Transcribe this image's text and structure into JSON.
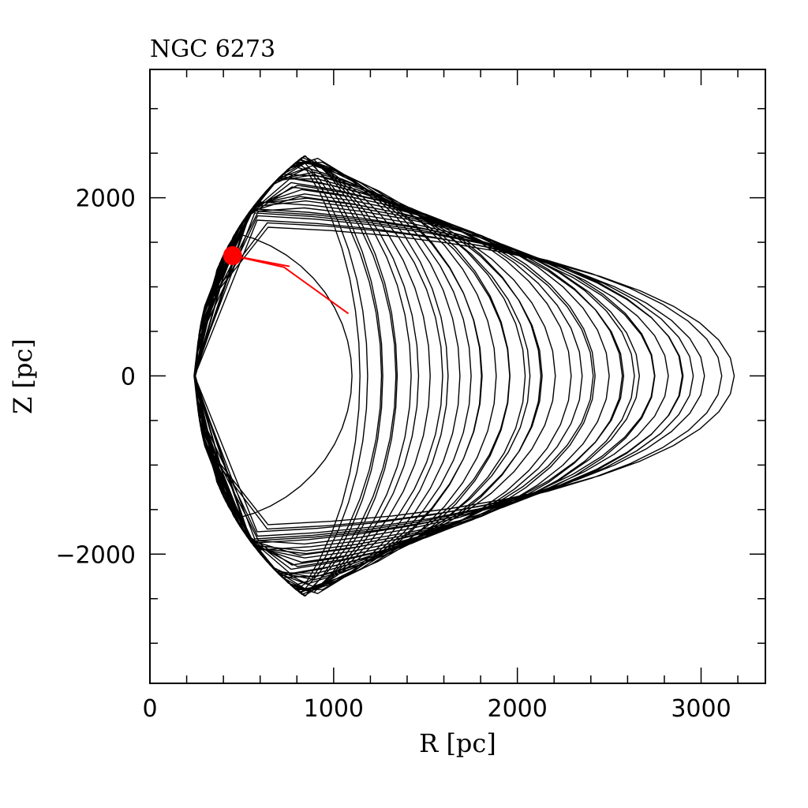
{
  "chart_data": {
    "type": "line",
    "title": "NGC 6273",
    "xlabel": "R [pc]",
    "ylabel": "Z [pc]",
    "xlim": [
      0,
      3350
    ],
    "ylim": [
      -3450,
      3440
    ],
    "x_major_ticks": [
      0,
      1000,
      2000,
      3000
    ],
    "x_minor_step": 200,
    "y_major_ticks": [
      -2000,
      0,
      2000
    ],
    "y_minor_step": 500,
    "x_tick_labels": [
      "0",
      "1000",
      "2000",
      "3000"
    ],
    "y_tick_labels": [
      "−2000",
      "0",
      "2000"
    ],
    "grid": false,
    "legend": "none",
    "orbit": {
      "color": "#000000",
      "envelope_r_min": 270,
      "envelope_r_max": 3200,
      "envelope_z_max": 3110,
      "crossings": 42
    },
    "current_position": {
      "r": 450,
      "z": 1350,
      "color": "#ff0000"
    },
    "recent_track": {
      "color": "#ff0000",
      "points": [
        [
          450,
          1350
        ],
        [
          730,
          1220
        ],
        [
          1080,
          700
        ]
      ]
    }
  }
}
